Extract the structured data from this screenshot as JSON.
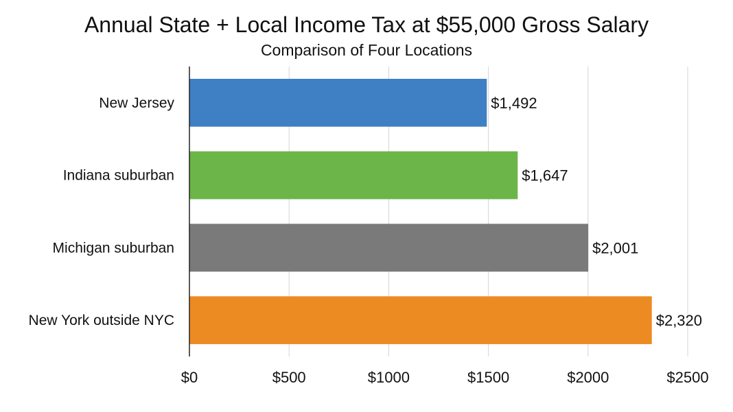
{
  "chart_data": {
    "type": "bar",
    "orientation": "horizontal",
    "title": "Annual State + Local Income Tax at $55,000 Gross Salary",
    "subtitle": "Comparison of Four Locations",
    "categories": [
      "New Jersey",
      "Indiana suburban",
      "Michigan suburban",
      "New York outside NYC"
    ],
    "values": [
      1492,
      1647,
      2001,
      2320
    ],
    "data_labels": [
      "$1,492",
      "$1,647",
      "$2,001",
      "$2,320"
    ],
    "colors": [
      "#3f7fc4",
      "#6cb548",
      "#7a7a7a",
      "#ed8b23"
    ],
    "xlim": [
      0,
      2500
    ],
    "xticks": [
      0,
      500,
      1000,
      1500,
      2000,
      2500
    ],
    "xtick_labels": [
      "$0",
      "$500",
      "$1000",
      "$1500",
      "$2000",
      "$2500"
    ],
    "xlabel": "",
    "ylabel": "",
    "grid": "vertical",
    "legend": "none"
  }
}
